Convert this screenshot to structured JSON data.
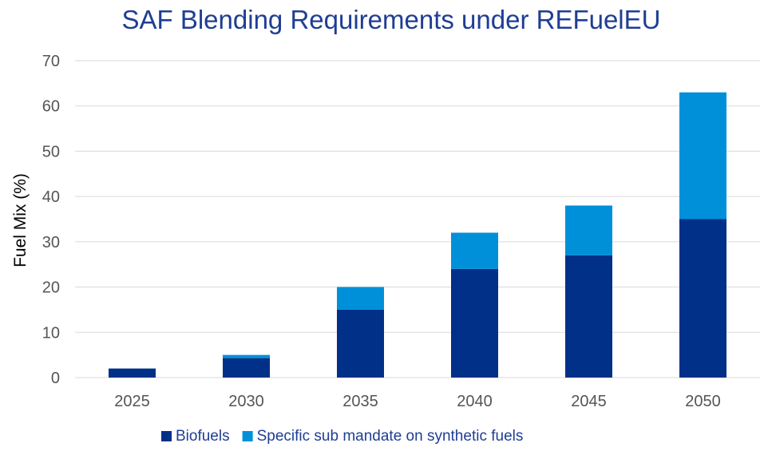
{
  "chart_data": {
    "type": "bar",
    "stacked": true,
    "title": "SAF Blending Requirements under REFuelEU",
    "xlabel": "",
    "ylabel": "Fuel Mix (%)",
    "categories": [
      "2025",
      "2030",
      "2035",
      "2040",
      "2045",
      "2050"
    ],
    "series": [
      {
        "name": "Biofuels",
        "color": "#003087",
        "values": [
          2,
          4.3,
          15,
          24,
          27,
          35
        ]
      },
      {
        "name": "Specific sub mandate on synthetic fuels",
        "color": "#0090d9",
        "values": [
          0,
          0.7,
          5,
          8,
          11,
          28
        ]
      }
    ],
    "ylim": [
      0,
      70
    ],
    "yticks": [
      0,
      10,
      20,
      30,
      40,
      50,
      60,
      70
    ],
    "grid": true,
    "legend_position": "bottom"
  }
}
